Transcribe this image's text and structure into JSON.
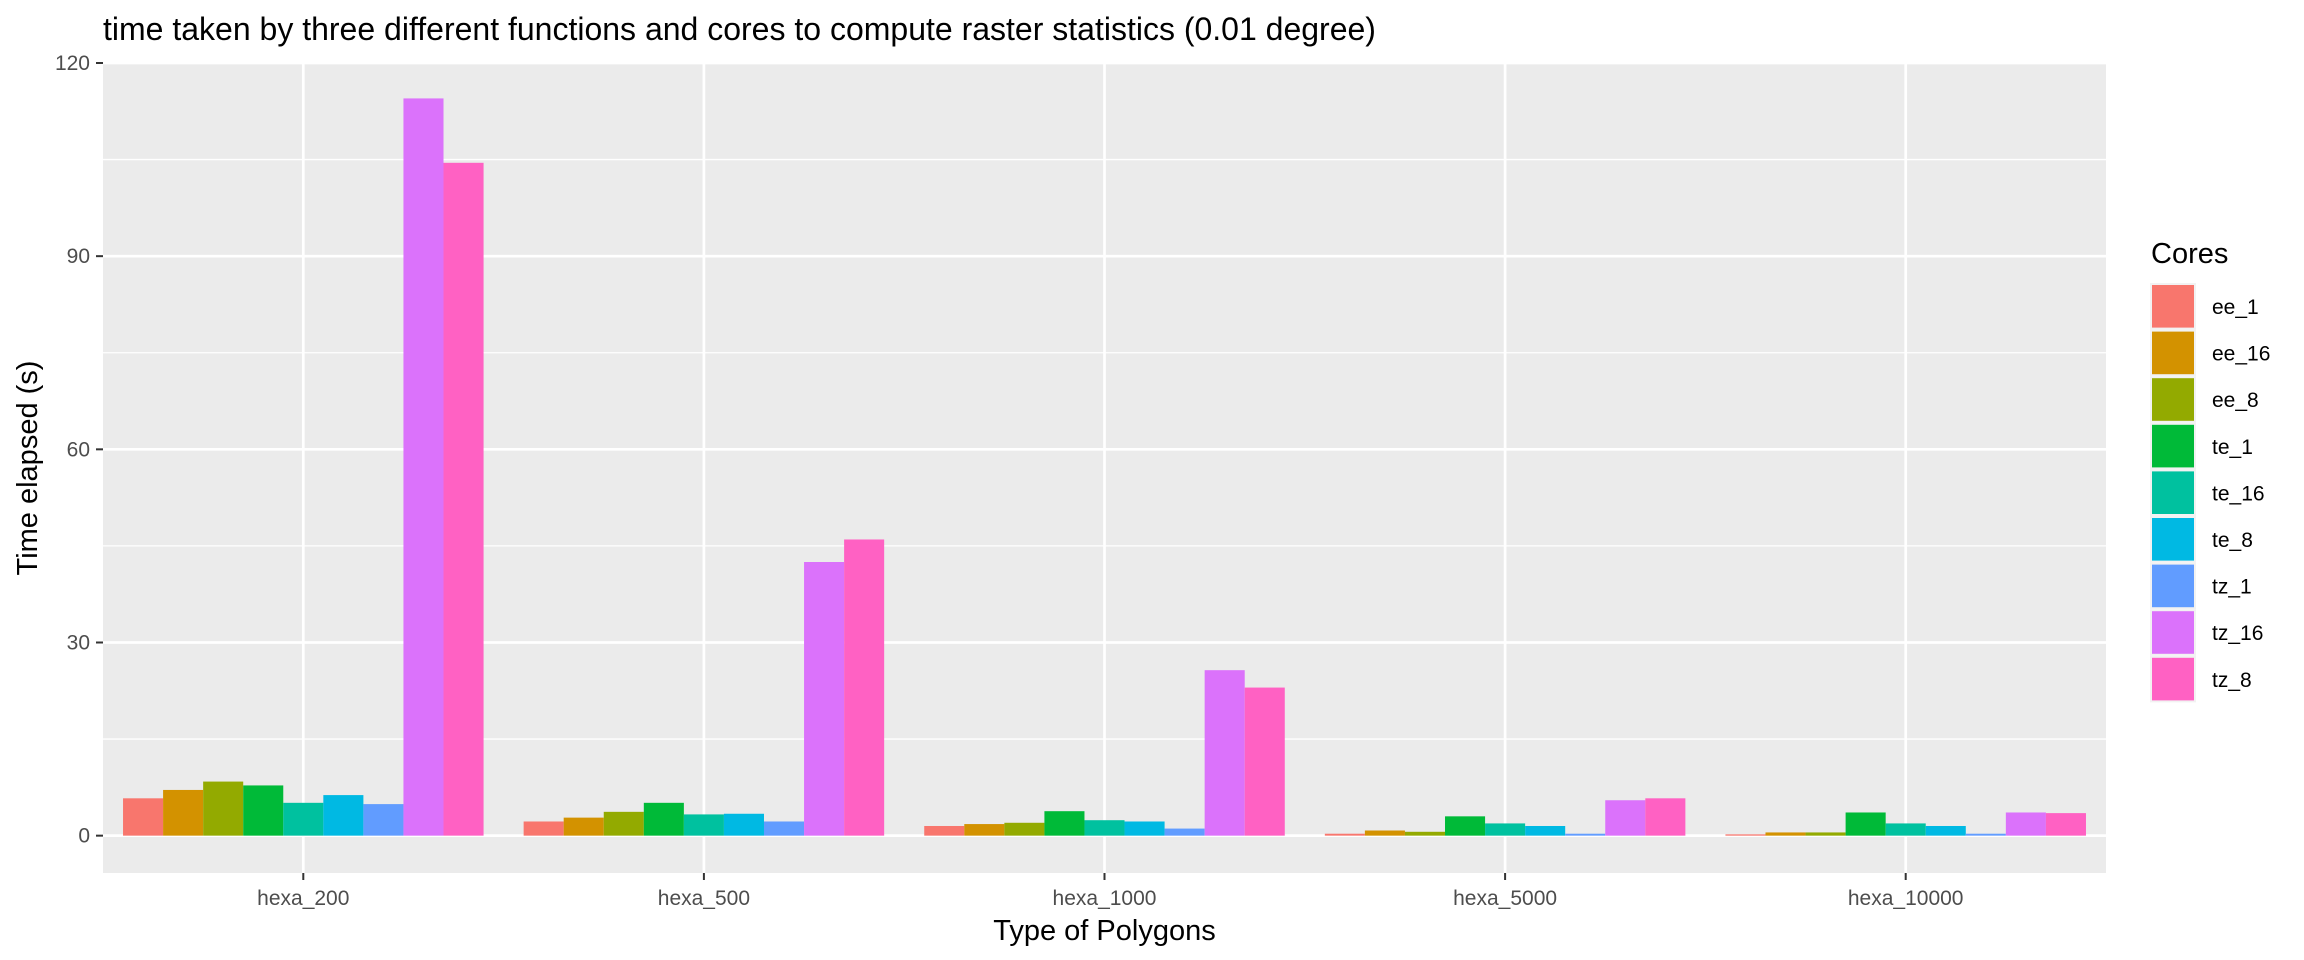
{
  "chart_data": {
    "type": "bar",
    "title": "time taken by three different functions and cores to compute raster statistics (0.01 degree)",
    "xlabel": "Type of Polygons",
    "ylabel": "Time elapsed (s)",
    "ylim": [
      -5.8,
      120
    ],
    "yticks": [
      0,
      30,
      60,
      90,
      120
    ],
    "grid": true,
    "legend": {
      "title": "Cores",
      "position": "right"
    },
    "categories": [
      "hexa_200",
      "hexa_500",
      "hexa_1000",
      "hexa_5000",
      "hexa_10000"
    ],
    "series": [
      {
        "name": "ee_1",
        "color": "#F8766D",
        "values": [
          5.8,
          2.2,
          1.5,
          0.3,
          0.2
        ]
      },
      {
        "name": "ee_16",
        "color": "#D39200",
        "values": [
          7.1,
          2.8,
          1.8,
          0.8,
          0.5
        ]
      },
      {
        "name": "ee_8",
        "color": "#93AA00",
        "values": [
          8.4,
          3.7,
          2.0,
          0.6,
          0.5
        ]
      },
      {
        "name": "te_1",
        "color": "#00BA38",
        "values": [
          7.8,
          5.1,
          3.8,
          3.0,
          3.6
        ]
      },
      {
        "name": "te_16",
        "color": "#00C19F",
        "values": [
          5.1,
          3.3,
          2.4,
          1.9,
          1.9
        ]
      },
      {
        "name": "te_8",
        "color": "#00B9E3",
        "values": [
          6.3,
          3.4,
          2.2,
          1.5,
          1.5
        ]
      },
      {
        "name": "tz_1",
        "color": "#619CFF",
        "values": [
          4.9,
          2.2,
          1.1,
          0.3,
          0.3
        ]
      },
      {
        "name": "tz_16",
        "color": "#DB72FB",
        "values": [
          114.5,
          42.5,
          25.7,
          5.5,
          3.6
        ]
      },
      {
        "name": "tz_8",
        "color": "#FF61C3",
        "values": [
          104.5,
          46.0,
          23.0,
          5.8,
          3.5
        ]
      }
    ]
  }
}
